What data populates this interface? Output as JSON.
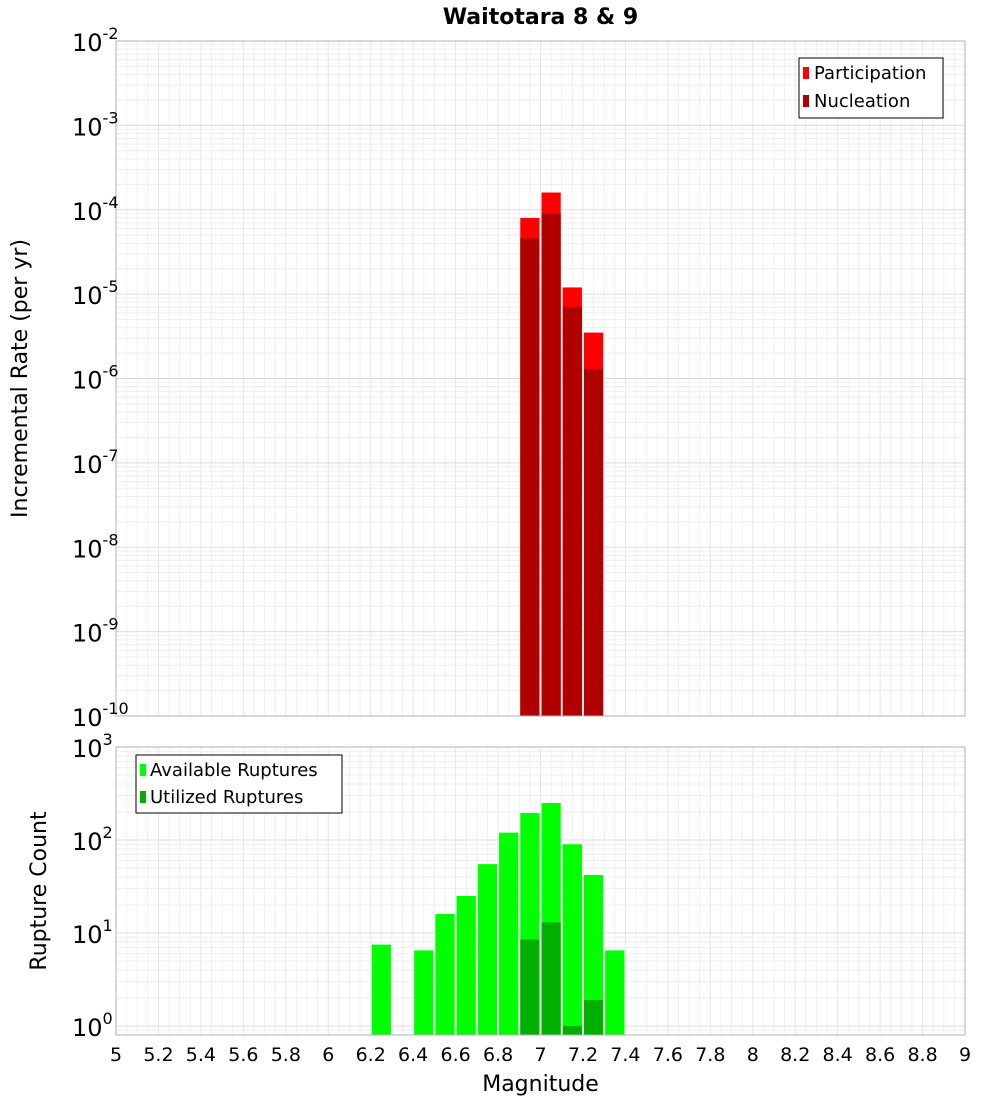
{
  "chart_data": [
    {
      "type": "bar",
      "title": "Waitotara 8 & 9",
      "ylabel": "Incremental Rate (per yr)",
      "yscale": "log",
      "ylim": [
        1e-10,
        0.01
      ],
      "xlim": [
        5,
        9
      ],
      "bar_width": 0.1,
      "ytick_exponents": [
        -10,
        -9,
        -8,
        -7,
        -6,
        -5,
        -4,
        -3,
        -2
      ],
      "legend": {
        "placement": "top-right",
        "entries": [
          "Participation",
          "Nucleation"
        ]
      },
      "series": [
        {
          "name": "Participation",
          "color": "#ff0000",
          "x": [
            6.95,
            7.05,
            7.15,
            7.25
          ],
          "values": [
            8e-05,
            0.00016,
            1.2e-05,
            3.5e-06
          ]
        },
        {
          "name": "Nucleation",
          "color": "#b00000",
          "x": [
            6.95,
            7.05,
            7.15,
            7.25
          ],
          "values": [
            4.6e-05,
            9e-05,
            7e-06,
            1.3e-06
          ]
        }
      ]
    },
    {
      "type": "bar",
      "xlabel": "Magnitude",
      "ylabel": "Rupture Count",
      "yscale": "log",
      "ylim": [
        0.8,
        1000
      ],
      "xlim": [
        5,
        9
      ],
      "bar_width": 0.1,
      "ytick_exponents": [
        0,
        1,
        2,
        3
      ],
      "xticks": [
        "5",
        "5.2",
        "5.4",
        "5.6",
        "5.8",
        "6",
        "6.2",
        "6.4",
        "6.6",
        "6.8",
        "7",
        "7.2",
        "7.4",
        "7.6",
        "7.8",
        "8",
        "8.2",
        "8.4",
        "8.6",
        "8.8",
        "9"
      ],
      "legend": {
        "placement": "top-left",
        "entries": [
          "Available Ruptures",
          "Utilized Ruptures"
        ]
      },
      "series": [
        {
          "name": "Available Ruptures",
          "color": "#00ff00",
          "x": [
            6.25,
            6.45,
            6.55,
            6.65,
            6.75,
            6.85,
            6.95,
            7.05,
            7.15,
            7.25,
            7.35
          ],
          "values": [
            7.5,
            6.5,
            16,
            25,
            55,
            120,
            195,
            250,
            90,
            42,
            6.5
          ]
        },
        {
          "name": "Utilized Ruptures",
          "color": "#00b000",
          "x": [
            6.95,
            7.05,
            7.15,
            7.25
          ],
          "values": [
            8.5,
            13,
            1.0,
            1.9
          ]
        }
      ]
    }
  ]
}
